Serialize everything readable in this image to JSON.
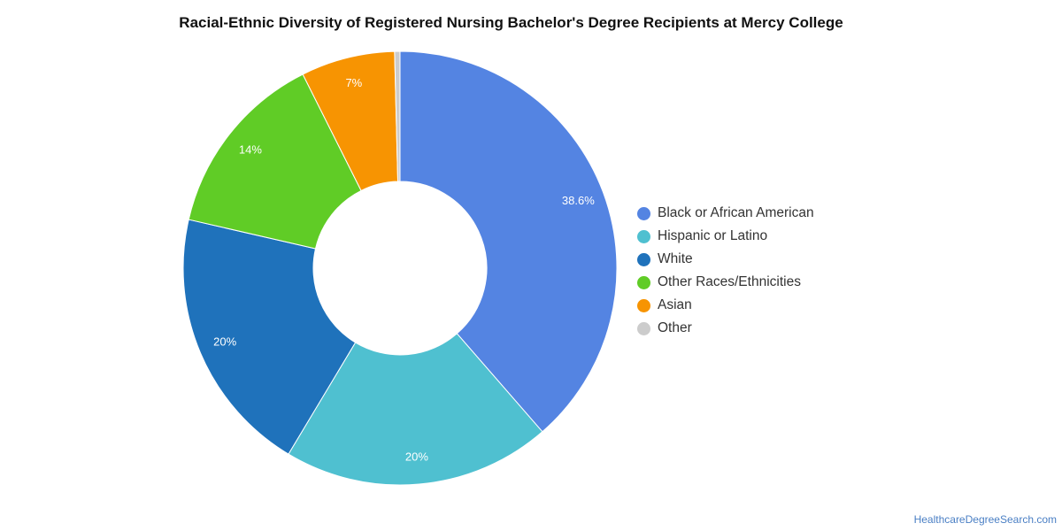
{
  "chart_data": {
    "type": "donut",
    "title": "Racial-Ethnic Diversity of Registered Nursing Bachelor's Degree Recipients at Mercy College",
    "unit": "%",
    "slices": [
      {
        "label": "Black or African American",
        "value": 38.6,
        "display": "38.6%",
        "color": "#5484e2"
      },
      {
        "label": "Hispanic or Latino",
        "value": 20.0,
        "display": "20%",
        "color": "#4fc0d0"
      },
      {
        "label": "White",
        "value": 20.0,
        "display": "20%",
        "color": "#1f72bb"
      },
      {
        "label": "Other Races/Ethnicities",
        "value": 14.0,
        "display": "14%",
        "color": "#60cc26"
      },
      {
        "label": "Asian",
        "value": 7.0,
        "display": "7%",
        "color": "#f79402"
      },
      {
        "label": "Other",
        "value": 0.4,
        "display": "",
        "color": "#cccccc"
      }
    ],
    "legend_position": "right"
  },
  "footer": {
    "watermark": "HealthcareDegreeSearch.com"
  }
}
